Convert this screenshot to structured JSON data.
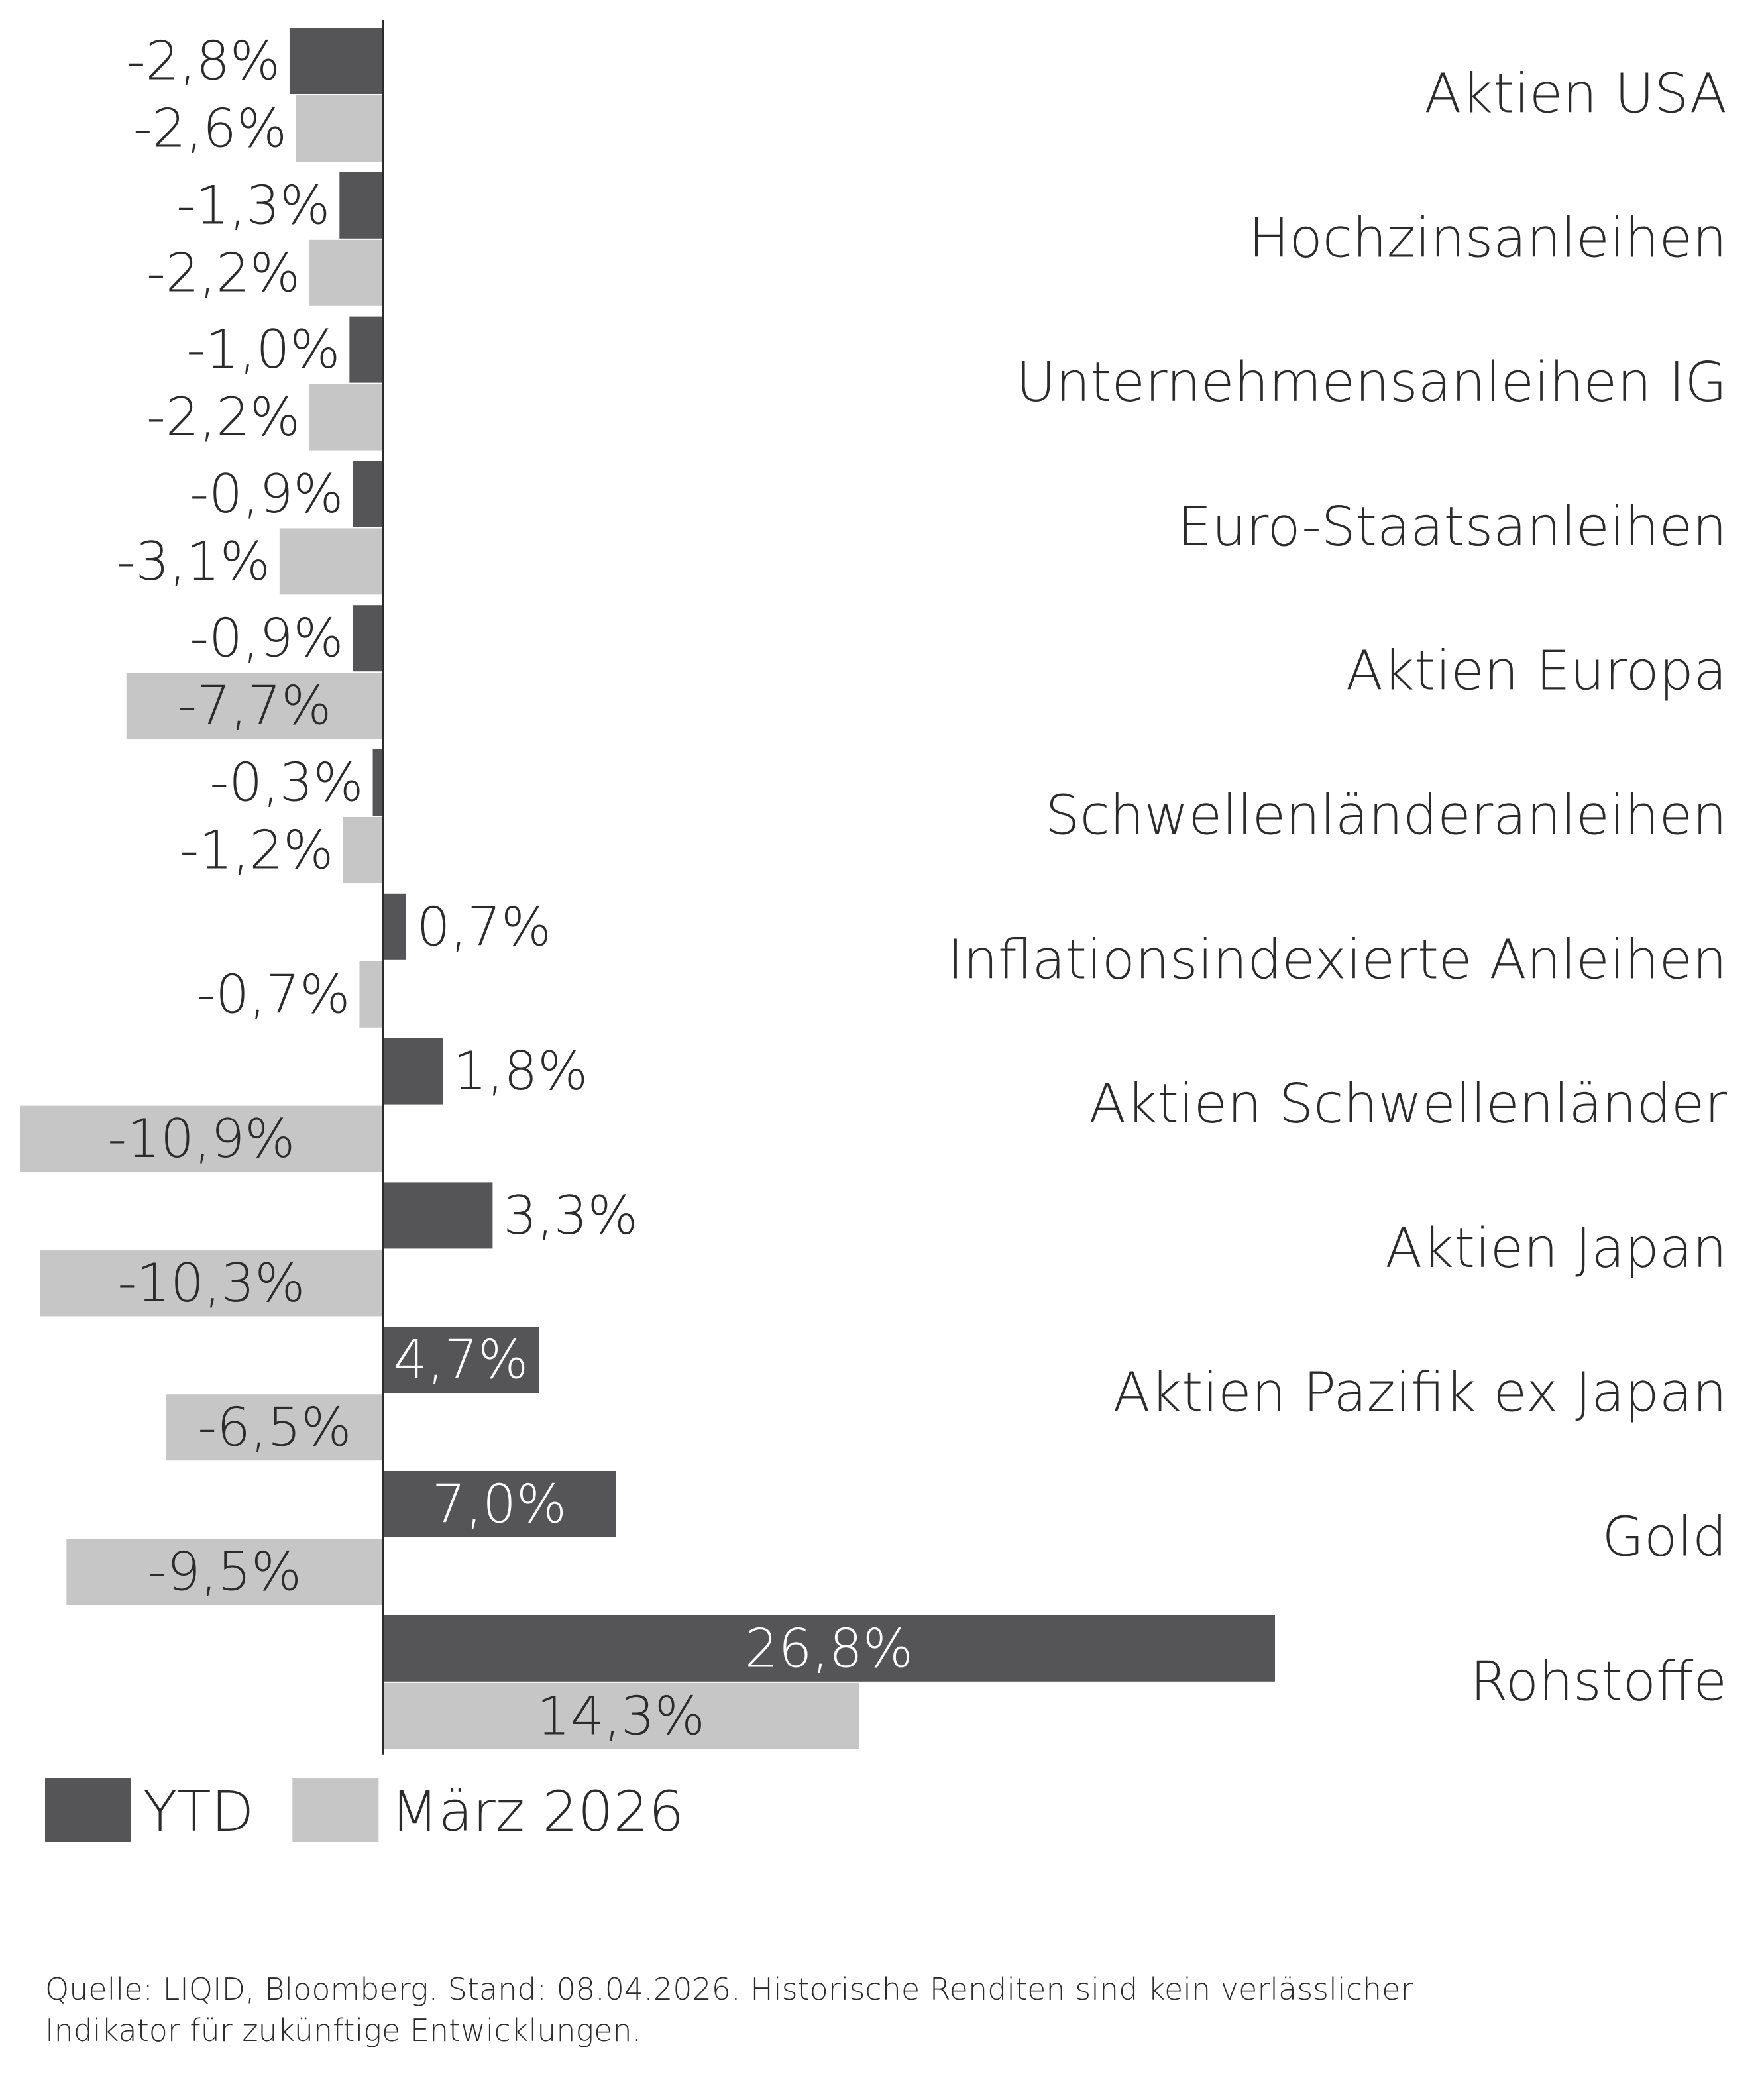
{
  "chart_data": {
    "type": "barh",
    "categories": [
      "Aktien USA",
      "Hochzinsanleihen",
      "Unternehmensanleihen IG",
      "Euro-Staatsanleihen",
      "Aktien Europa",
      "Schwellenländeranleihen",
      "Inflationsindexierte Anleihen",
      "Aktien Schwellenländer",
      "Aktien Japan",
      "Aktien Pazifik ex Japan",
      "Gold",
      "Rohstoffe"
    ],
    "series": [
      {
        "name": "YTD",
        "color": "#555557",
        "values": [
          -2.8,
          -1.3,
          -1.0,
          -0.9,
          -0.9,
          -0.3,
          0.7,
          1.8,
          3.3,
          4.7,
          7.0,
          26.8
        ],
        "value_labels": [
          "-2,8%",
          "-1,3%",
          "-1,0%",
          "-0,9%",
          "-0,9%",
          "-0,3%",
          "0,7%",
          "1,8%",
          "3,3%",
          "4,7%",
          "7,0%",
          "26,8%"
        ]
      },
      {
        "name": "März 2026",
        "color": "#c6c6c6",
        "values": [
          -2.6,
          -2.2,
          -2.2,
          -3.1,
          -7.7,
          -1.2,
          -0.7,
          -10.9,
          -10.3,
          -6.5,
          -9.5,
          14.3
        ],
        "value_labels": [
          "-2,6%",
          "-2,2%",
          "-2,2%",
          "-3,1%",
          "-7,7%",
          "-1,2%",
          "-0,7%",
          "-10,9%",
          "-10,3%",
          "-6,5%",
          "-9,5%",
          "14,3%"
        ]
      }
    ],
    "legend": "bottom-left",
    "source": [
      "Quelle: LIQID, Bloomberg. Stand: 08.04.2026. Historische Renditen sind kein verlässlicher",
      "Indikator für zukünftige Entwicklungen."
    ]
  }
}
